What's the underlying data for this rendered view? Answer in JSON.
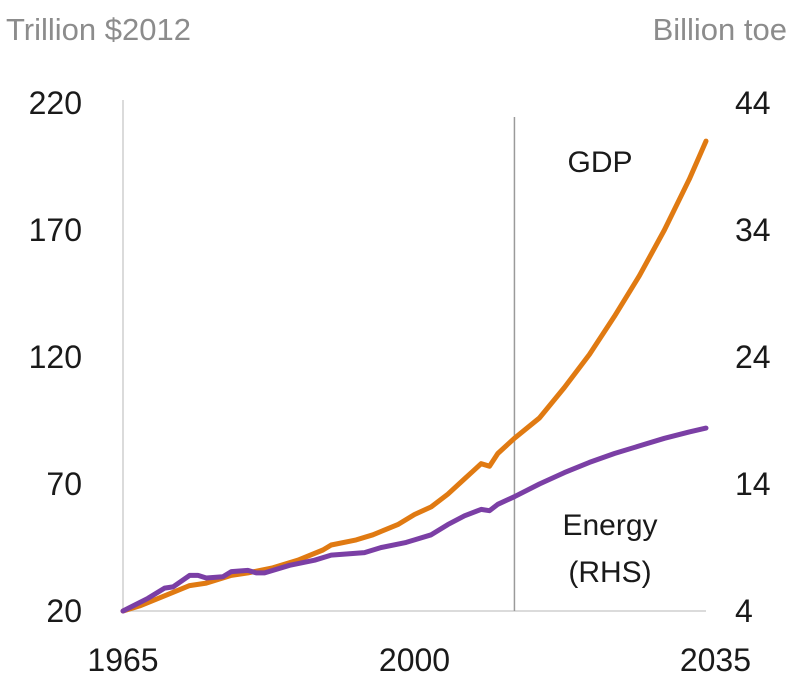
{
  "chart_data": {
    "type": "line",
    "left_axis_label": "Trillion $2012",
    "right_axis_label": "Billion toe",
    "x_ticks": [
      "1965",
      "2000",
      "2035"
    ],
    "y_left_ticks": [
      "220",
      "170",
      "120",
      "70",
      "20"
    ],
    "y_right_ticks": [
      "44",
      "34",
      "24",
      "14",
      "4"
    ],
    "xlim": [
      1965,
      2035
    ],
    "ylim_left": [
      20,
      220
    ],
    "ylim_right": [
      4,
      44
    ],
    "grid": false,
    "divider_year": 2012,
    "series": [
      {
        "name": "GDP",
        "axis": "left",
        "color": "#e07a12",
        "points": [
          [
            1965,
            20
          ],
          [
            1967,
            22
          ],
          [
            1970,
            26
          ],
          [
            1973,
            30
          ],
          [
            1975,
            31
          ],
          [
            1978,
            34
          ],
          [
            1980,
            35
          ],
          [
            1983,
            37
          ],
          [
            1986,
            40
          ],
          [
            1989,
            44
          ],
          [
            1990,
            46
          ],
          [
            1993,
            48
          ],
          [
            1995,
            50
          ],
          [
            1998,
            54
          ],
          [
            2000,
            58
          ],
          [
            2002,
            61
          ],
          [
            2004,
            66
          ],
          [
            2006,
            72
          ],
          [
            2007,
            75
          ],
          [
            2008,
            78
          ],
          [
            2009,
            77
          ],
          [
            2010,
            82
          ],
          [
            2012,
            88
          ],
          [
            2015,
            96
          ],
          [
            2018,
            108
          ],
          [
            2021,
            121
          ],
          [
            2024,
            136
          ],
          [
            2027,
            152
          ],
          [
            2030,
            170
          ],
          [
            2033,
            190
          ],
          [
            2035,
            205
          ]
        ]
      },
      {
        "name": "Energy (RHS)",
        "axis": "right",
        "color": "#7b3fa5",
        "points": [
          [
            1965,
            4.0
          ],
          [
            1968,
            5.0
          ],
          [
            1970,
            5.8
          ],
          [
            1971,
            5.9
          ],
          [
            1973,
            6.8
          ],
          [
            1974,
            6.8
          ],
          [
            1975,
            6.6
          ],
          [
            1977,
            6.7
          ],
          [
            1978,
            7.1
          ],
          [
            1980,
            7.2
          ],
          [
            1981,
            7.0
          ],
          [
            1982,
            7.0
          ],
          [
            1983,
            7.2
          ],
          [
            1985,
            7.6
          ],
          [
            1988,
            8.0
          ],
          [
            1990,
            8.4
          ],
          [
            1992,
            8.5
          ],
          [
            1994,
            8.6
          ],
          [
            1996,
            9.0
          ],
          [
            1999,
            9.4
          ],
          [
            2000,
            9.6
          ],
          [
            2002,
            10.0
          ],
          [
            2004,
            10.8
          ],
          [
            2006,
            11.5
          ],
          [
            2008,
            12.0
          ],
          [
            2009,
            11.9
          ],
          [
            2010,
            12.4
          ],
          [
            2012,
            13.0
          ],
          [
            2015,
            14.0
          ],
          [
            2018,
            14.9
          ],
          [
            2021,
            15.7
          ],
          [
            2024,
            16.4
          ],
          [
            2027,
            17.0
          ],
          [
            2030,
            17.6
          ],
          [
            2033,
            18.1
          ],
          [
            2035,
            18.4
          ]
        ]
      }
    ],
    "series_labels": {
      "gdp": "GDP",
      "energy_line1": "Energy",
      "energy_line2": "(RHS)"
    }
  }
}
